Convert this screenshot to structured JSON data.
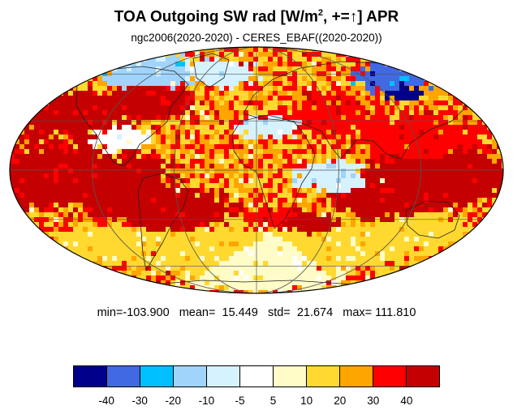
{
  "title": {
    "prefix": "TOA Outgoing SW rad [W/m",
    "superscript": "2",
    "middle": ", +=",
    "arrow": "↑",
    "suffix": "] APR"
  },
  "subtitle": "ngc2006(2020-2020) - CERES_EBAF((2020-2020))",
  "stats": {
    "text": "min=-103.900   mean=  15.449   std=  21.674   max= 111.810",
    "min": -103.9,
    "mean": 15.449,
    "std": 21.674,
    "max": 111.81
  },
  "colorbar": {
    "colors": [
      "#00008b",
      "#4169e1",
      "#00bfff",
      "#a0d4fa",
      "#d6f2ff",
      "#ffffff",
      "#fffcc8",
      "#ffd92f",
      "#ffa500",
      "#ff0000",
      "#c40000"
    ],
    "labels": [
      "-40",
      "-30",
      "-20",
      "-10",
      "-5",
      "5",
      "10",
      "20",
      "30",
      "40"
    ]
  },
  "map": {
    "projection": "mollweide",
    "field": "model minus observation difference, April"
  }
}
